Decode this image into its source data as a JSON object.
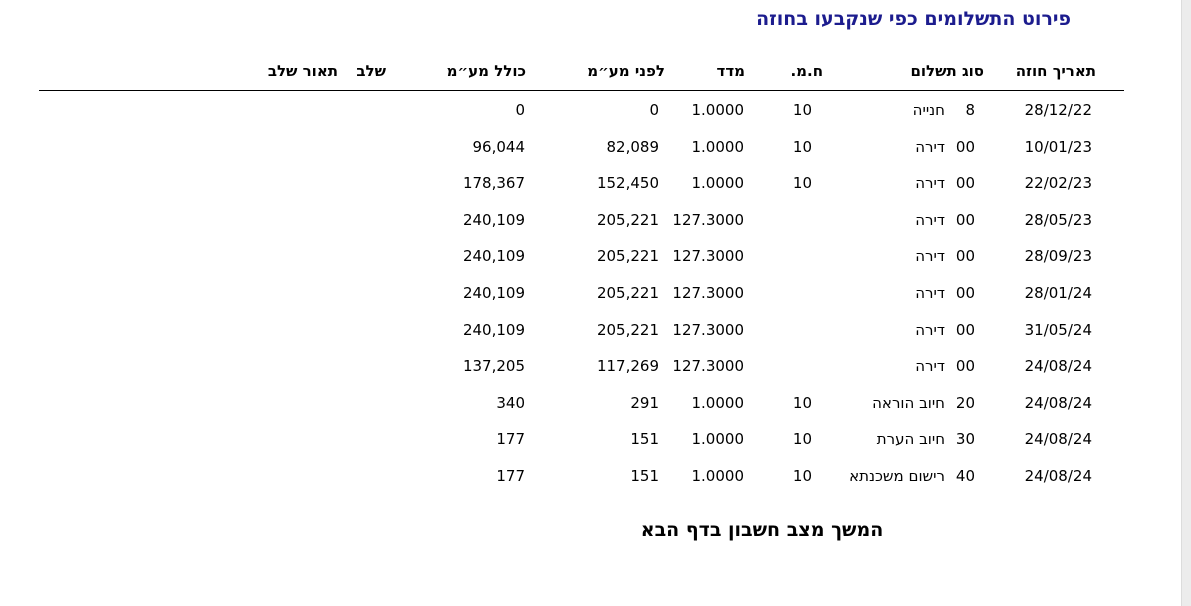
{
  "title": "פירוט התשלומים כפי שנקבעו בחוזה",
  "headers": {
    "contract_date": "תאריך חוזה",
    "payment_type": "סוג תשלום",
    "hm": "ח.מ.",
    "index": "מדד",
    "before_vat": "לפני מע״מ",
    "incl_vat": "כולל מע״מ",
    "stage": "שלב",
    "stage_desc": "תאור שלב"
  },
  "rows": [
    {
      "date": "28/12/22",
      "code": "8",
      "type": "חנייה",
      "hm": "10",
      "index": "1.0000",
      "before_vat": "0",
      "incl_vat": "0"
    },
    {
      "date": "10/01/23",
      "code": "00",
      "type": "דירה",
      "hm": "10",
      "index": "1.0000",
      "before_vat": "82,089",
      "incl_vat": "96,044"
    },
    {
      "date": "22/02/23",
      "code": "00",
      "type": "דירה",
      "hm": "10",
      "index": "1.0000",
      "before_vat": "152,450",
      "incl_vat": "178,367"
    },
    {
      "date": "28/05/23",
      "code": "00",
      "type": "דירה",
      "hm": "",
      "index": "127.3000",
      "before_vat": "205,221",
      "incl_vat": "240,109"
    },
    {
      "date": "28/09/23",
      "code": "00",
      "type": "דירה",
      "hm": "",
      "index": "127.3000",
      "before_vat": "205,221",
      "incl_vat": "240,109"
    },
    {
      "date": "28/01/24",
      "code": "00",
      "type": "דירה",
      "hm": "",
      "index": "127.3000",
      "before_vat": "205,221",
      "incl_vat": "240,109"
    },
    {
      "date": "31/05/24",
      "code": "00",
      "type": "דירה",
      "hm": "",
      "index": "127.3000",
      "before_vat": "205,221",
      "incl_vat": "240,109"
    },
    {
      "date": "24/08/24",
      "code": "00",
      "type": "דירה",
      "hm": "",
      "index": "127.3000",
      "before_vat": "117,269",
      "incl_vat": "137,205"
    },
    {
      "date": "24/08/24",
      "code": "20",
      "type": "חיוב הוראה",
      "hm": "10",
      "index": "1.0000",
      "before_vat": "291",
      "incl_vat": "340"
    },
    {
      "date": "24/08/24",
      "code": "30",
      "type": "חיוב הערת",
      "hm": "10",
      "index": "1.0000",
      "before_vat": "151",
      "incl_vat": "177"
    },
    {
      "date": "24/08/24",
      "code": "40",
      "type": "רישום משכנתא",
      "hm": "10",
      "index": "1.0000",
      "before_vat": "151",
      "incl_vat": "177"
    }
  ],
  "footer": "המשך מצב חשבון בדף הבא"
}
